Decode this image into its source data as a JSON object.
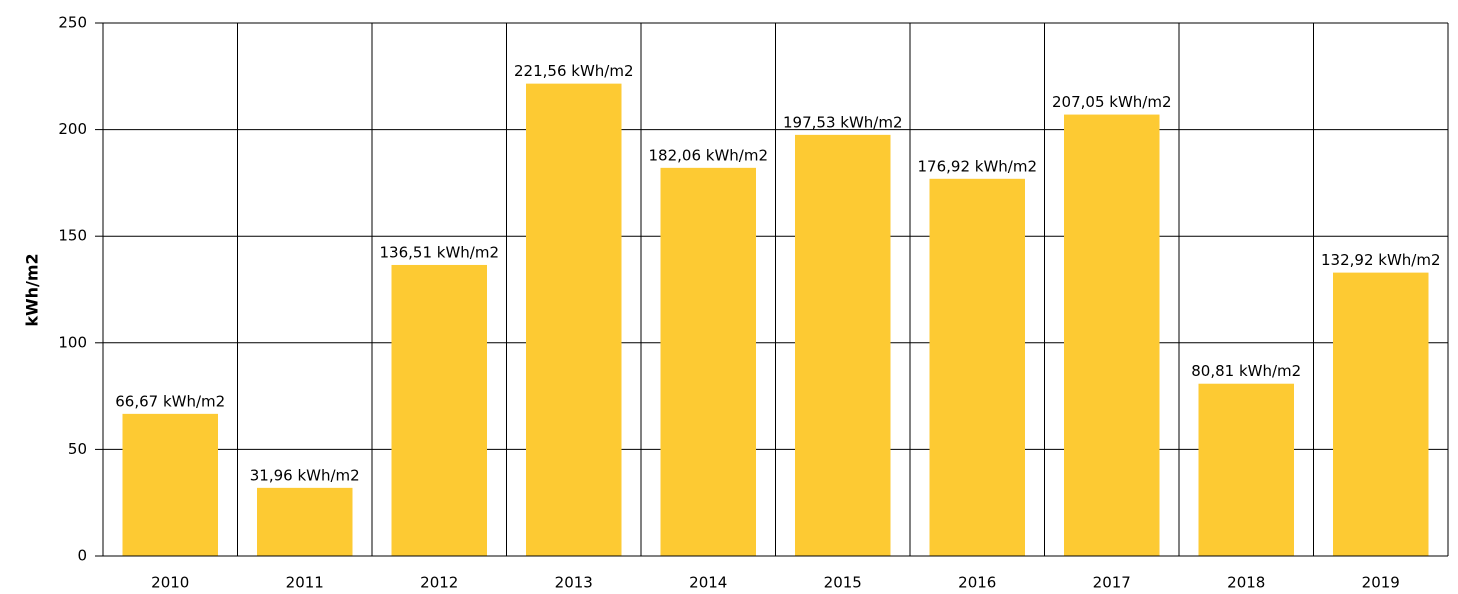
{
  "chart_data": {
    "type": "bar",
    "y_label": "kWh/m2",
    "categories": [
      "2010",
      "2011",
      "2012",
      "2013",
      "2014",
      "2015",
      "2016",
      "2017",
      "2018",
      "2019"
    ],
    "values": [
      66.67,
      31.96,
      136.51,
      221.56,
      182.06,
      197.53,
      176.92,
      207.05,
      80.81,
      132.92
    ],
    "value_labels": [
      "66,67 kWh/m2",
      "31,96 kWh/m2",
      "136,51 kWh/m2",
      "221,56 kWh/m2",
      "182,06 kWh/m2",
      "197,53 kWh/m2",
      "176,92 kWh/m2",
      "207,05 kWh/m2",
      "80,81 kWh/m2",
      "132,92 kWh/m2"
    ],
    "color": "#fdca33",
    "ylim": [
      0,
      250
    ],
    "yticks": [
      0,
      50,
      100,
      150,
      200,
      250
    ],
    "grid": true
  }
}
